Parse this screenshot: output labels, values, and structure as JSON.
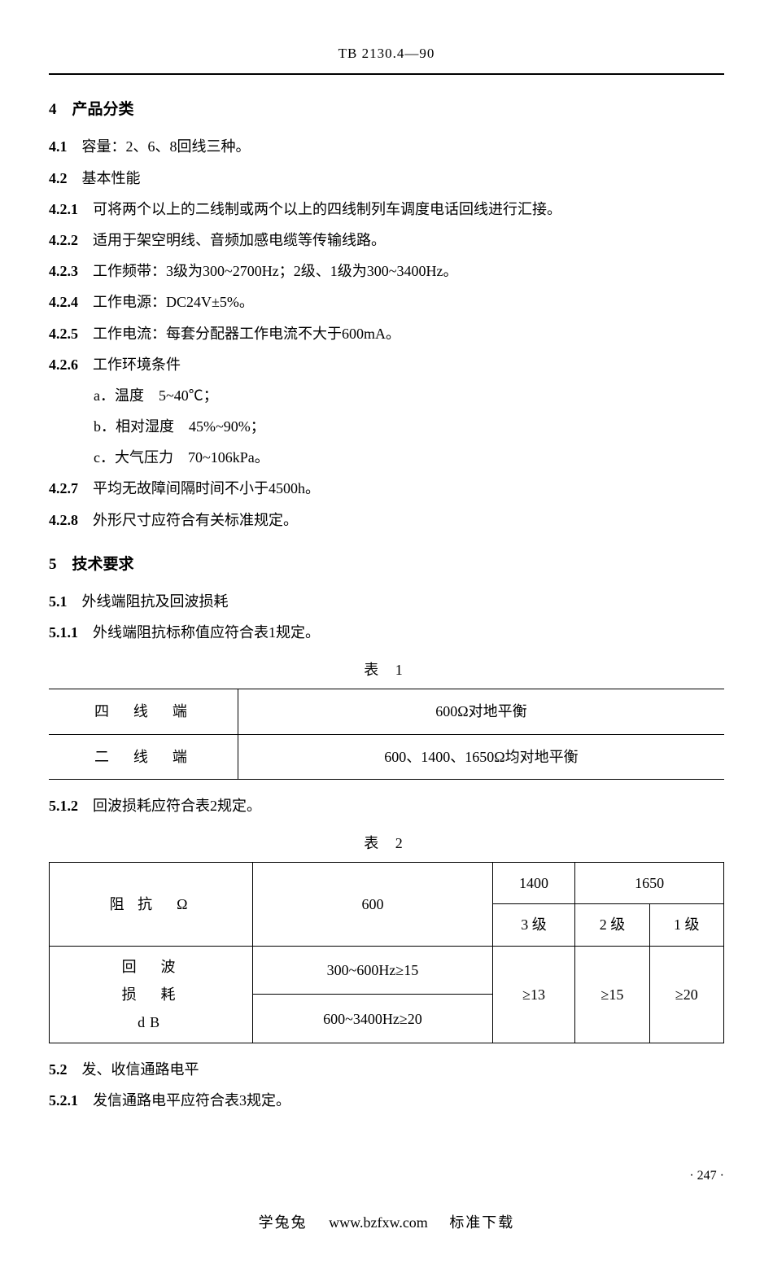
{
  "header": {
    "code": "TB 2130.4—90"
  },
  "section4": {
    "title": "4　产品分类",
    "items": {
      "s4_1": {
        "prefix": "4.1",
        "text": "　容量：2、6、8回线三种。"
      },
      "s4_2": {
        "prefix": "4.2",
        "text": "　基本性能"
      },
      "s4_2_1": {
        "prefix": "4.2.1",
        "text": "　可将两个以上的二线制或两个以上的四线制列车调度电话回线进行汇接。"
      },
      "s4_2_2": {
        "prefix": "4.2.2",
        "text": "　适用于架空明线、音频加感电缆等传输线路。"
      },
      "s4_2_3": {
        "prefix": "4.2.3",
        "text": "　工作频带：3级为300~2700Hz；2级、1级为300~3400Hz。"
      },
      "s4_2_4": {
        "prefix": "4.2.4",
        "text": "　工作电源：DC24V±5%。"
      },
      "s4_2_5": {
        "prefix": "4.2.5",
        "text": "　工作电流：每套分配器工作电流不大于600mA。"
      },
      "s4_2_6": {
        "prefix": "4.2.6",
        "text": "　工作环境条件"
      },
      "env_a": "a．温度　5~40℃；",
      "env_b": "b．相对湿度　45%~90%；",
      "env_c": "c．大气压力　70~106kPa。",
      "s4_2_7": {
        "prefix": "4.2.7",
        "text": "　平均无故障间隔时间不小于4500h。"
      },
      "s4_2_8": {
        "prefix": "4.2.8",
        "text": "　外形尺寸应符合有关标准规定。"
      }
    }
  },
  "section5": {
    "title": "5　技术要求",
    "s5_1": {
      "prefix": "5.1",
      "text": "　外线端阻抗及回波损耗"
    },
    "s5_1_1": {
      "prefix": "5.1.1",
      "text": "　外线端阻抗标称值应符合表1规定。"
    },
    "s5_1_2": {
      "prefix": "5.1.2",
      "text": "　回波损耗应符合表2规定。"
    },
    "s5_2": {
      "prefix": "5.2",
      "text": "　发、收信通路电平"
    },
    "s5_2_1": {
      "prefix": "5.2.1",
      "text": "　发信通路电平应符合表3规定。"
    }
  },
  "table1": {
    "caption": "表 1",
    "rows": [
      {
        "c1": "四　线　端",
        "c2": "600Ω对地平衡"
      },
      {
        "c1": "二　线　端",
        "c2": "600、1400、1650Ω均对地平衡"
      }
    ]
  },
  "table2": {
    "caption": "表 2",
    "header": {
      "impedance": "阻 抗　Ω",
      "v600": "600",
      "v1400": "1400",
      "v1650": "1650",
      "l3": "3 级",
      "l2": "2 级",
      "l1": "1 级"
    },
    "rows": {
      "r1_label1": "回　波",
      "r1_label2": "损　耗",
      "r1_label3": "dB",
      "r1_v600a": "300~600Hz≥15",
      "r1_v600b": "600~3400Hz≥20",
      "r1_l3": "≥13",
      "r1_l2": "≥15",
      "r1_l1": "≥20"
    }
  },
  "footer": {
    "page": "· 247 ·",
    "brand": "学兔兔",
    "site": "www.bzfxw.com",
    "tagline": "标准下载"
  }
}
